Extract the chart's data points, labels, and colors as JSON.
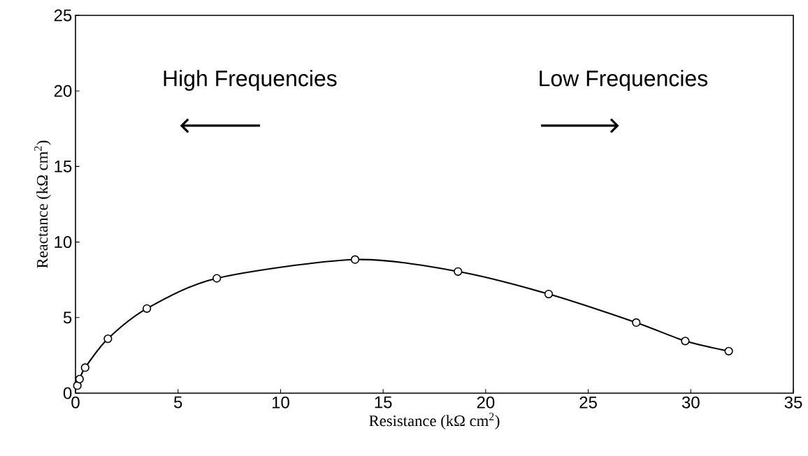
{
  "chart_data": {
    "type": "line",
    "xlabel": "Resistance (kΩ cm$^{2}$)",
    "ylabel": "Reactance (kΩ cm$^{2}$)",
    "x": [
      0.09,
      0.2,
      0.47,
      1.58,
      3.48,
      6.89,
      13.63,
      18.65,
      23.07,
      27.34,
      29.73,
      31.85
    ],
    "series": [
      {
        "color": "#000000",
        "values": [
          0.5,
          0.93,
          1.69,
          3.6,
          5.6,
          7.6,
          8.84,
          8.05,
          6.56,
          4.67,
          3.45,
          2.78
        ]
      }
    ],
    "xlim": [
      0,
      35
    ],
    "ylim": [
      0,
      25
    ],
    "xticks": [
      0,
      5,
      10,
      15,
      20,
      25,
      30,
      35
    ],
    "yticks": [
      0,
      5,
      10,
      15,
      20,
      25
    ],
    "marker": "circle",
    "line_style": "solid",
    "annotations": [
      "High Frequencies",
      "Low Frequencies"
    ]
  }
}
